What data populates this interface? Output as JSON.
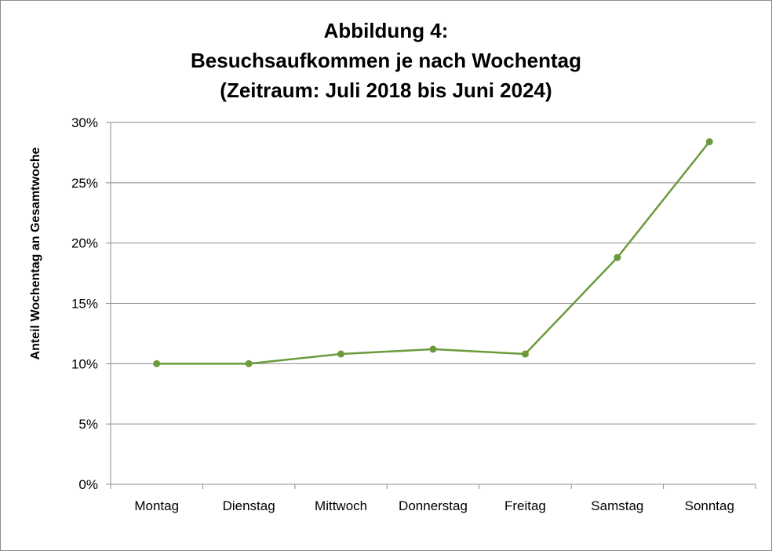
{
  "chart_data": {
    "type": "line",
    "title": [
      "Abbildung 4:",
      "Besuchsaufkommen je nach Wochentag",
      "(Zeitraum: Juli 2018 bis Juni 2024)"
    ],
    "xlabel": "",
    "ylabel": "Anteil Wochentag an Gesamtwoche",
    "categories": [
      "Montag",
      "Dienstag",
      "Mittwoch",
      "Donnerstag",
      "Freitag",
      "Samstag",
      "Sonntag"
    ],
    "series": [
      {
        "values": [
          10.0,
          10.0,
          10.8,
          11.2,
          10.8,
          18.8,
          28.4
        ],
        "color": "#6a9b3c"
      }
    ],
    "ylim": [
      0,
      30
    ],
    "yticks": [
      0,
      5,
      10,
      15,
      20,
      25,
      30
    ],
    "ytick_labels": [
      "0%",
      "5%",
      "10%",
      "15%",
      "20%",
      "25%",
      "30%"
    ],
    "grid": true,
    "legend": "none"
  }
}
